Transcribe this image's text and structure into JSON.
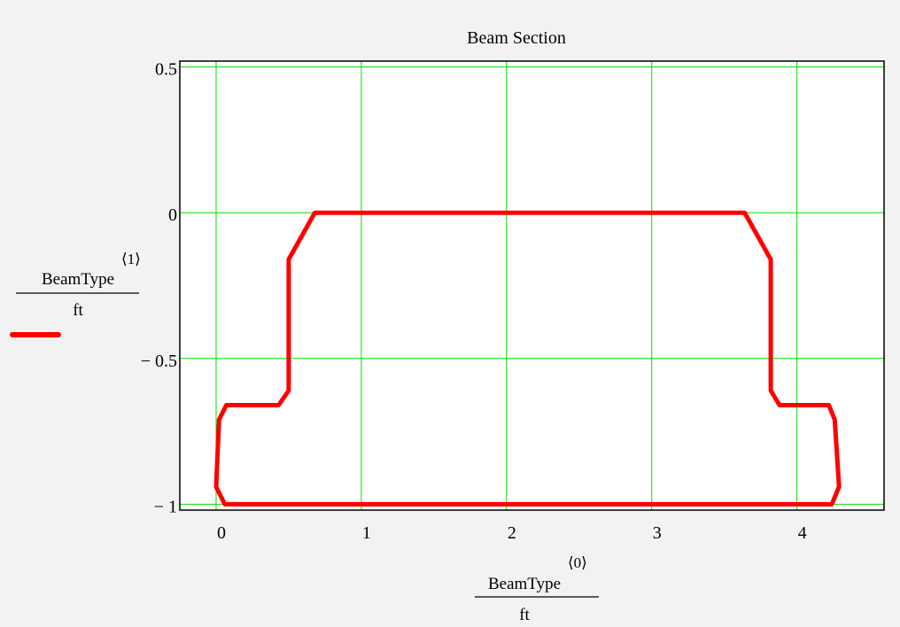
{
  "chart_data": {
    "type": "line",
    "title": "Beam Section",
    "xlabel": {
      "name": "BeamType",
      "superscript": "⟨0⟩",
      "unit": "ft"
    },
    "ylabel": {
      "name": "BeamType",
      "superscript": "⟨1⟩",
      "unit": "ft"
    },
    "xlim": [
      -0.25,
      4.6
    ],
    "ylim": [
      -1.02,
      0.52
    ],
    "xticks": [
      0,
      1,
      2,
      3,
      4
    ],
    "xtick_labels": [
      "0",
      "1",
      "2",
      "3",
      "4"
    ],
    "yticks": [
      0.5,
      0,
      -0.5,
      -1
    ],
    "ytick_labels": [
      "0.5",
      "0",
      "− 0.5",
      "− 1"
    ],
    "grid": true,
    "grid_color": "#00dd00",
    "legend": "left",
    "series": [
      {
        "color": "#ff0000",
        "x": [
          0.06,
          0.0,
          0.02,
          0.07,
          0.43,
          0.5,
          0.5,
          0.68,
          3.64,
          3.82,
          3.82,
          3.88,
          4.22,
          4.26,
          4.29,
          4.24,
          0.06
        ],
        "y": [
          -1.0,
          -0.94,
          -0.71,
          -0.66,
          -0.66,
          -0.61,
          -0.16,
          0.0,
          0.0,
          -0.16,
          -0.61,
          -0.66,
          -0.66,
          -0.71,
          -0.94,
          -1.0,
          -1.0
        ]
      }
    ]
  }
}
